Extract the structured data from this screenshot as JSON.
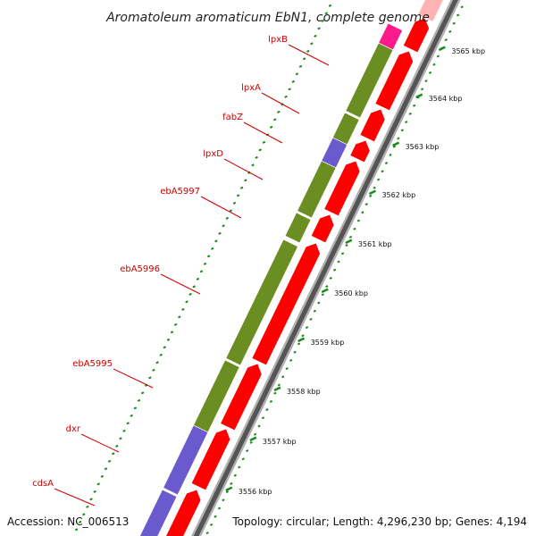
{
  "title": "Aromatoleum aromaticum EbN1, complete genome",
  "footer": {
    "accession": "Accession: NC_006513",
    "summary": "Topology: circular; Length: 4,296,230 bp; Genes: 4,194"
  },
  "colors": {
    "gene_label": "#cc0000",
    "label_line": "#cc0000",
    "tick": "#1a8a1a",
    "cds": "#ff0000",
    "cog_green": "#6b8e23",
    "cog_blue": "#6a5acd",
    "cog_magenta": "#ff1a8c",
    "backbone": "#555555"
  },
  "genes": [
    {
      "name": "lpxB",
      "cog": "cog_green"
    },
    {
      "name": "lpxA",
      "cog": "cog_green"
    },
    {
      "name": "fabZ",
      "cog": "cog_blue"
    },
    {
      "name": "lpxD",
      "cog": "cog_green"
    },
    {
      "name": "ebA5997",
      "cog": "cog_green"
    },
    {
      "name": "ebA5996",
      "cog": "cog_green"
    },
    {
      "name": "ebA5995",
      "cog": "cog_green"
    },
    {
      "name": "dxr",
      "cog": "cog_blue"
    },
    {
      "name": "cdsA",
      "cog": "cog_blue"
    }
  ],
  "scale_ticks": [
    {
      "label": "3556 kbp"
    },
    {
      "label": "3557 kbp"
    },
    {
      "label": "3558 kbp"
    },
    {
      "label": "3559 kbp"
    },
    {
      "label": "3560 kbp"
    },
    {
      "label": "3561 kbp"
    },
    {
      "label": "3562 kbp"
    },
    {
      "label": "3563 kbp"
    },
    {
      "label": "3564 kbp"
    },
    {
      "label": "3565 kbp"
    }
  ]
}
